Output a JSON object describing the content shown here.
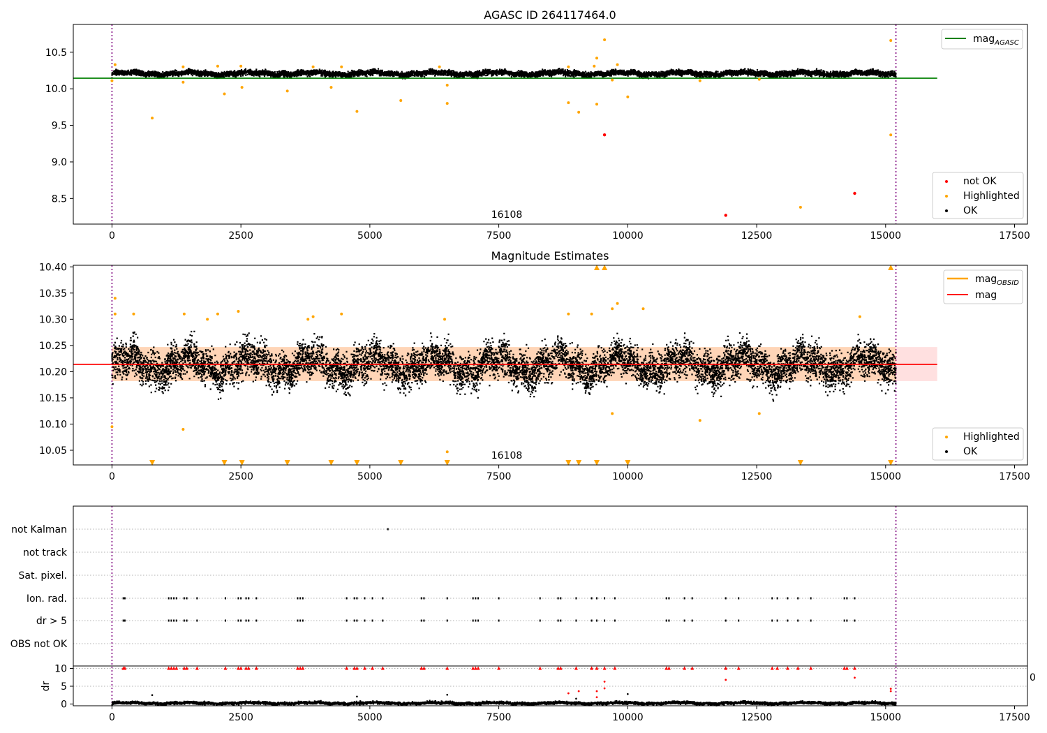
{
  "figure": {
    "background": "#ffffff"
  },
  "chart_data": [
    {
      "type": "scatter",
      "title": "AGASC ID 264117464.0",
      "xlim": [
        -750,
        17750
      ],
      "ylim": [
        8.15,
        10.88
      ],
      "x_ticks": [
        0,
        2500,
        5000,
        7500,
        10000,
        12500,
        15000,
        17500
      ],
      "y_ticks": [
        8.5,
        9.0,
        9.5,
        10.0,
        10.5
      ],
      "y_tick_labels": [
        "8.5",
        "9.0",
        "9.5",
        "10.0",
        "10.5"
      ],
      "obsid_bounds": [
        0,
        15200
      ],
      "obsid_label": {
        "text": "16108",
        "x": 7600
      },
      "ok_band": {
        "center": 10.22,
        "spread": 0.035,
        "x_start": 0,
        "x_end": 15200
      },
      "mag_agasc": {
        "value": 10.145,
        "x_start": -750,
        "x_end": 16000
      },
      "highlighted_points": [
        [
          780,
          9.6
        ],
        [
          1380,
          10.09
        ],
        [
          2180,
          9.93
        ],
        [
          2520,
          10.02
        ],
        [
          3400,
          9.97
        ],
        [
          4250,
          10.02
        ],
        [
          4750,
          9.69
        ],
        [
          5600,
          9.84
        ],
        [
          6500,
          9.8
        ],
        [
          6500,
          10.05
        ],
        [
          8850,
          9.81
        ],
        [
          9050,
          9.68
        ],
        [
          9400,
          9.79
        ],
        [
          9400,
          10.42
        ],
        [
          9550,
          10.67
        ],
        [
          9700,
          10.12
        ],
        [
          10000,
          9.89
        ],
        [
          11400,
          10.11
        ],
        [
          12550,
          10.13
        ],
        [
          13350,
          8.38
        ],
        [
          15100,
          9.37
        ],
        [
          15100,
          10.66
        ],
        [
          0,
          10.11
        ],
        [
          60,
          10.33
        ],
        [
          1380,
          10.3
        ],
        [
          2050,
          10.31
        ],
        [
          2500,
          10.31
        ],
        [
          3900,
          10.3
        ],
        [
          4450,
          10.3
        ],
        [
          6350,
          10.3
        ],
        [
          8850,
          10.3
        ],
        [
          9350,
          10.31
        ],
        [
          9800,
          10.33
        ]
      ],
      "not_ok_points": [
        [
          9550,
          9.37
        ],
        [
          11900,
          8.27
        ],
        [
          14400,
          8.57
        ]
      ],
      "legends": [
        {
          "position": "upper-right",
          "entries": [
            {
              "label_main": "mag",
              "label_sub": "AGASC",
              "color": "#008000",
              "marker": "line"
            }
          ]
        },
        {
          "position": "lower-right",
          "entries": [
            {
              "label": "not OK",
              "color": "#ff0000",
              "marker": "dot"
            },
            {
              "label": "Highlighted",
              "color": "#ffa500",
              "marker": "dot"
            },
            {
              "label": "OK",
              "color": "#000000",
              "marker": "dot"
            }
          ]
        }
      ]
    },
    {
      "type": "scatter",
      "title": "Magnitude Estimates",
      "xlim": [
        -750,
        17750
      ],
      "ylim": [
        10.022,
        10.403
      ],
      "x_ticks": [
        0,
        2500,
        5000,
        7500,
        10000,
        12500,
        15000,
        17500
      ],
      "y_ticks": [
        10.05,
        10.1,
        10.15,
        10.2,
        10.25,
        10.3,
        10.35,
        10.4
      ],
      "y_tick_labels": [
        "10.05",
        "10.10",
        "10.15",
        "10.20",
        "10.25",
        "10.30",
        "10.35",
        "10.40"
      ],
      "obsid_bounds": [
        0,
        15200
      ],
      "obsid_label": {
        "text": "16108",
        "x": 7600
      },
      "ok_band": {
        "center": 10.214,
        "spread": 0.034,
        "x_start": 0,
        "x_end": 15200
      },
      "mag_line": {
        "value": 10.214,
        "x_start": -750,
        "x_end": 16000
      },
      "mag_band": {
        "low": 10.182,
        "high": 10.247,
        "x_start": 0,
        "x_end": 16000
      },
      "highlighted_points": [
        [
          0,
          10.095
        ],
        [
          60,
          10.34
        ],
        [
          60,
          10.31
        ],
        [
          420,
          10.31
        ],
        [
          1380,
          10.09
        ],
        [
          1400,
          10.31
        ],
        [
          1850,
          10.3
        ],
        [
          2050,
          10.31
        ],
        [
          2450,
          10.315
        ],
        [
          3800,
          10.3
        ],
        [
          3900,
          10.305
        ],
        [
          4450,
          10.31
        ],
        [
          6450,
          10.3
        ],
        [
          6500,
          10.047
        ],
        [
          8850,
          10.31
        ],
        [
          9300,
          10.31
        ],
        [
          9700,
          10.12
        ],
        [
          9700,
          10.32
        ],
        [
          9800,
          10.33
        ],
        [
          10300,
          10.32
        ],
        [
          11400,
          10.107
        ],
        [
          12550,
          10.12
        ],
        [
          14500,
          10.305
        ]
      ],
      "highlighted_up_arrows": [
        9400,
        9550,
        15100
      ],
      "highlighted_down_arrows": [
        780,
        2180,
        2520,
        3400,
        4250,
        4750,
        5600,
        6500,
        8850,
        9050,
        9400,
        10000,
        13350,
        15100
      ],
      "legends": [
        {
          "position": "upper-right",
          "entries": [
            {
              "label_main": "mag",
              "label_sub": "OBSID",
              "color": "#ffa500",
              "marker": "line"
            },
            {
              "label": "mag",
              "color": "#ff0000",
              "marker": "line"
            }
          ]
        },
        {
          "position": "lower-right",
          "entries": [
            {
              "label": "Highlighted",
              "color": "#ffa500",
              "marker": "dot"
            },
            {
              "label": "OK",
              "color": "#000000",
              "marker": "dot"
            }
          ]
        }
      ]
    },
    {
      "type": "scatter",
      "title": "",
      "xlim": [
        -750,
        17750
      ],
      "x_ticks": [
        0,
        2500,
        5000,
        7500,
        10000,
        12500,
        15000,
        17500
      ],
      "obsid_bounds": [
        0,
        15200
      ],
      "flag_rows": [
        "not Kalman",
        "not track",
        "Sat. pixel.",
        "Ion. rad.",
        "dr > 5",
        "OBS not OK"
      ],
      "flag_events": {
        "not Kalman": [
          5350
        ],
        "not track": [],
        "Sat. pixel.": [],
        "Ion. rad.": [
          220,
          250,
          1100,
          1150,
          1200,
          1250,
          1400,
          1450,
          1650,
          2200,
          2450,
          2500,
          2600,
          2650,
          2800,
          3600,
          3650,
          3700,
          4550,
          4700,
          4750,
          4900,
          5050,
          5250,
          6000,
          6050,
          6500,
          7000,
          7050,
          7100,
          7500,
          8300,
          8650,
          8700,
          9000,
          9300,
          9400,
          9550,
          9750,
          10750,
          10800,
          11100,
          11250,
          11900,
          12150,
          12800,
          12900,
          13100,
          13300,
          13550,
          14200,
          14250,
          14400
        ],
        "dr > 5": [
          220,
          250,
          1100,
          1150,
          1200,
          1250,
          1400,
          1450,
          1650,
          2200,
          2450,
          2500,
          2600,
          2650,
          2800,
          3600,
          3650,
          3700,
          4550,
          4700,
          4750,
          4900,
          5050,
          5250,
          6000,
          6050,
          6500,
          7000,
          7050,
          7100,
          7500,
          8300,
          8650,
          8700,
          9000,
          9300,
          9400,
          9550,
          9750,
          10750,
          10800,
          11100,
          11250,
          11900,
          12150,
          12800,
          12900,
          13100,
          13300,
          13550,
          14200,
          14250,
          14400
        ],
        "OBS not OK": []
      },
      "dr_subplot": {
        "ylabel": "dr",
        "ylim": [
          -0.5,
          10.5
        ],
        "y_ticks": [
          0,
          5,
          10
        ],
        "y_tick_labels": [
          "0",
          "5",
          "10"
        ],
        "right_edge_label": "0",
        "capped_arrows_at_10": [
          220,
          250,
          1100,
          1150,
          1200,
          1250,
          1400,
          1450,
          1650,
          2200,
          2450,
          2500,
          2600,
          2650,
          2800,
          3600,
          3650,
          3700,
          4550,
          4700,
          4750,
          4900,
          5050,
          5250,
          6000,
          6050,
          6500,
          7000,
          7050,
          7100,
          7500,
          8300,
          8650,
          8700,
          9000,
          9300,
          9400,
          9550,
          9750,
          10750,
          10800,
          11100,
          11250,
          11900,
          12150,
          12800,
          12900,
          13100,
          13300,
          13550,
          14200,
          14250,
          14400
        ],
        "red_points": [
          [
            8850,
            3.0
          ],
          [
            9050,
            3.6
          ],
          [
            9400,
            3.6
          ],
          [
            9400,
            1.9
          ],
          [
            9550,
            4.4
          ],
          [
            9550,
            6.3
          ],
          [
            11900,
            6.8
          ],
          [
            14400,
            7.4
          ],
          [
            15100,
            3.6
          ],
          [
            15100,
            4.3
          ]
        ],
        "black_outliers": [
          [
            780,
            2.5
          ],
          [
            4750,
            2.1
          ],
          [
            6500,
            2.6
          ],
          [
            10000,
            2.8
          ],
          [
            9000,
            1.5
          ]
        ],
        "baseline": {
          "center": 0.45,
          "spread": 0.35
        }
      }
    }
  ]
}
